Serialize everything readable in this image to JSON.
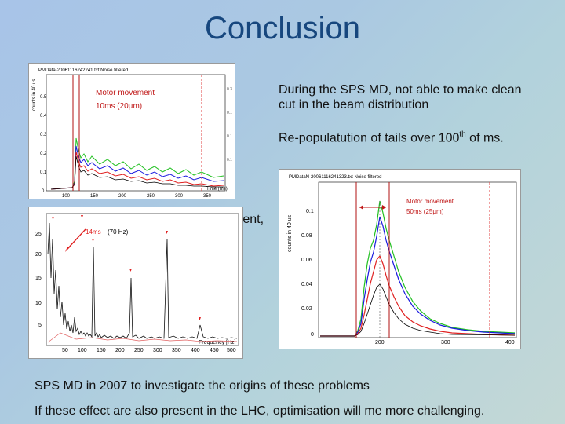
{
  "title": "Conclusion",
  "bullets": {
    "b1": "During the SPS MD, not able to make clean cut in the beam distribution",
    "b2_prefix": "Re-populatution of tails over 100",
    "b2_sup": "th",
    "b2_suffix": " of ms.",
    "hidden_fragment": "ment,",
    "b3": "SPS MD in 2007 to investigate the origins of these problems",
    "b4": "If these effect are also present in the LHC, optimisation will me more challenging."
  },
  "plot1": {
    "header": "PMData-20061116242241.txt Noise filtered",
    "ylabel": "counts in 40 us",
    "xlabel": "Time (ms)",
    "annotation_line1": "Motor movement",
    "annotation_line2": "10ms (20μm)",
    "yticks": [
      "0.5",
      "0.4",
      "0.3",
      "0.2",
      "0.1",
      "0"
    ],
    "xticks": [
      "100",
      "150",
      "200",
      "250",
      "300",
      "350"
    ]
  },
  "plot2": {
    "header": "PMDataN-20061116241323.txt Noise filtered",
    "ylabel": "counts in 40 us",
    "annotation_line1": "Motor movement",
    "annotation_line2": "50ms (25μm)",
    "yticks": [
      "0.1",
      "0.08",
      "0.06",
      "0.04",
      "0.02",
      "0"
    ],
    "xticks": [
      "200",
      "300",
      "400"
    ]
  },
  "plot3": {
    "xlabel": "Frequency [Hz]",
    "annotation_red": "14ms",
    "annotation_black": "(70 Hz)",
    "yticks": [
      "25",
      "20",
      "15",
      "10",
      "5"
    ],
    "xticks": [
      "50",
      "100",
      "150",
      "200",
      "250",
      "300",
      "350",
      "400",
      "450",
      "500"
    ]
  },
  "colors": {
    "title": "#17477e",
    "red": "#e02020",
    "green": "#22c022",
    "blue": "#1a1adf"
  }
}
